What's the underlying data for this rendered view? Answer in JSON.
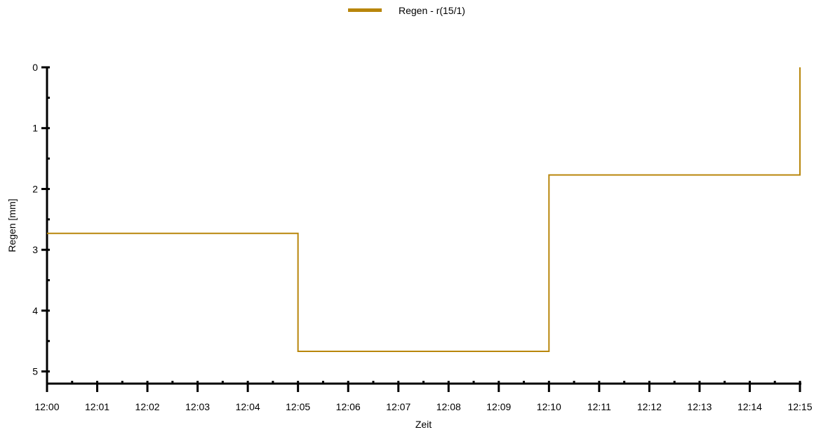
{
  "chart_data": {
    "type": "line",
    "step": "post",
    "legend": {
      "position": "top-center",
      "entries": [
        "Regen - r(15/1)"
      ]
    },
    "xlabel": "Zeit",
    "ylabel": "Regen [mm]",
    "x_tick_labels": [
      "12:00",
      "12:01",
      "12:02",
      "12:03",
      "12:04",
      "12:05",
      "12:06",
      "12:07",
      "12:08",
      "12:09",
      "12:10",
      "12:11",
      "12:12",
      "12:13",
      "12:14",
      "12:15"
    ],
    "y_tick_labels": [
      "0",
      "1",
      "2",
      "3",
      "4",
      "5"
    ],
    "xlim": [
      "12:00",
      "12:15"
    ],
    "ylim": [
      0,
      5.2
    ],
    "y_inverted": true,
    "grid": false,
    "series": [
      {
        "name": "Regen - r(15/1)",
        "color": "#b8860b",
        "x": [
          "12:00",
          "12:05",
          "12:10",
          "12:15"
        ],
        "values": [
          2.73,
          4.67,
          1.77,
          0
        ]
      }
    ]
  }
}
